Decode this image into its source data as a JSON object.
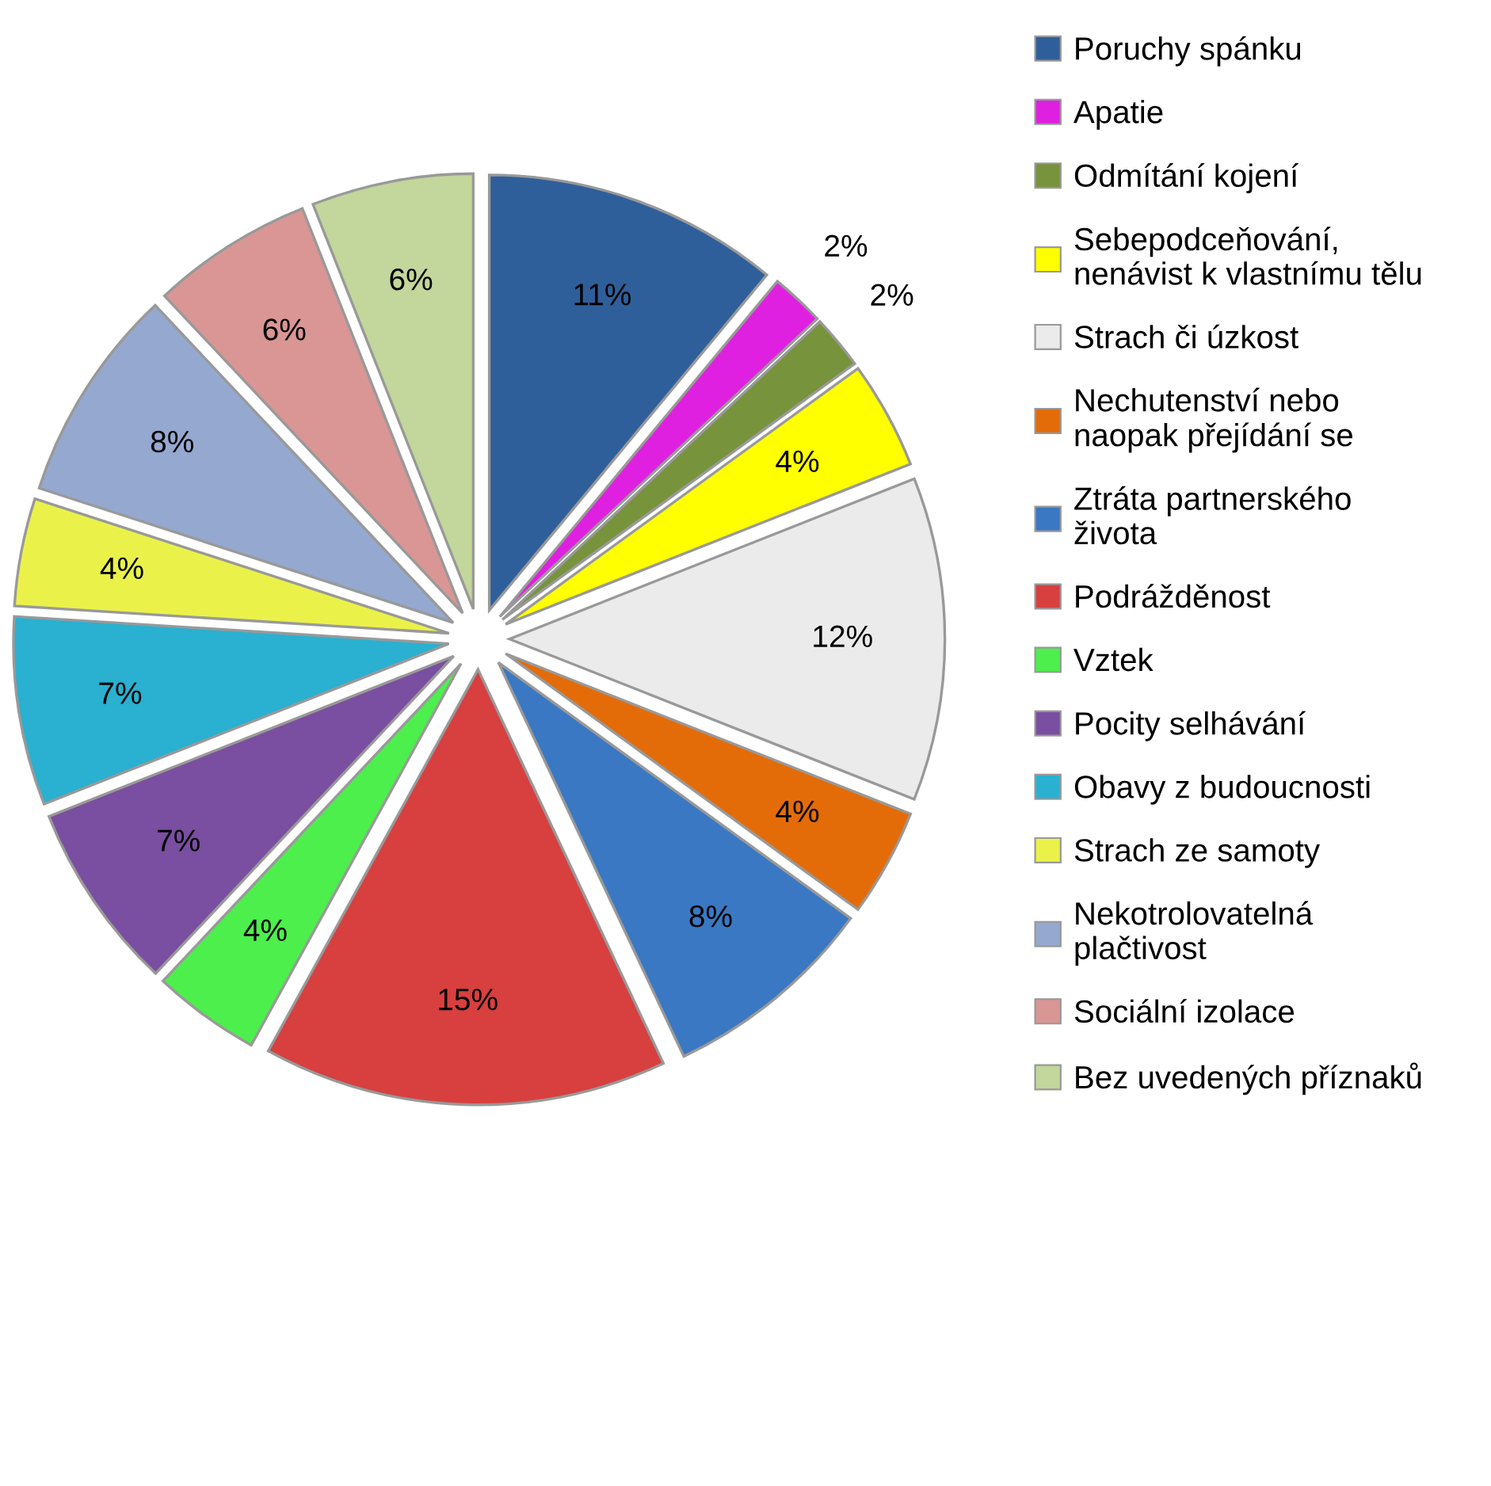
{
  "chart_data": {
    "type": "pie",
    "categories": [
      "Poruchy spánku",
      "Apatie",
      "Odmítání kojení",
      "Sebepodceňování,\nnenávist k vlastnímu tělu",
      "Strach či úzkost",
      "Nechutenství nebo\nnaopak přejídání se",
      "Ztráta partnerského\nživota",
      "Podrážděnost",
      "Vztek",
      "Pocity selhávání",
      "Obavy z budoucnosti",
      "Strach ze samoty",
      "Nekotrolovatelná\nplačtivost",
      "Sociální izolace",
      "Bez uvedených příznaků"
    ],
    "values": [
      11,
      2,
      2,
      4,
      12,
      4,
      8,
      15,
      4,
      7,
      7,
      4,
      8,
      6,
      6
    ],
    "value_labels": [
      "11%",
      "2%",
      "2%",
      "4%",
      "12%",
      "4%",
      "8%",
      "15%",
      "4%",
      "7%",
      "7%",
      "4%",
      "8%",
      "6%",
      "6%"
    ],
    "colors": [
      "#2f5f9a",
      "#e020e0",
      "#77933c",
      "#ffff00",
      "#ebebeb",
      "#e36c09",
      "#3a78c3",
      "#d83f3f",
      "#4cef4c",
      "#7a4ea0",
      "#2ab0d0",
      "#eaf24a",
      "#95a8cf",
      "#d99694",
      "#c3d69b"
    ],
    "legend": "right"
  }
}
